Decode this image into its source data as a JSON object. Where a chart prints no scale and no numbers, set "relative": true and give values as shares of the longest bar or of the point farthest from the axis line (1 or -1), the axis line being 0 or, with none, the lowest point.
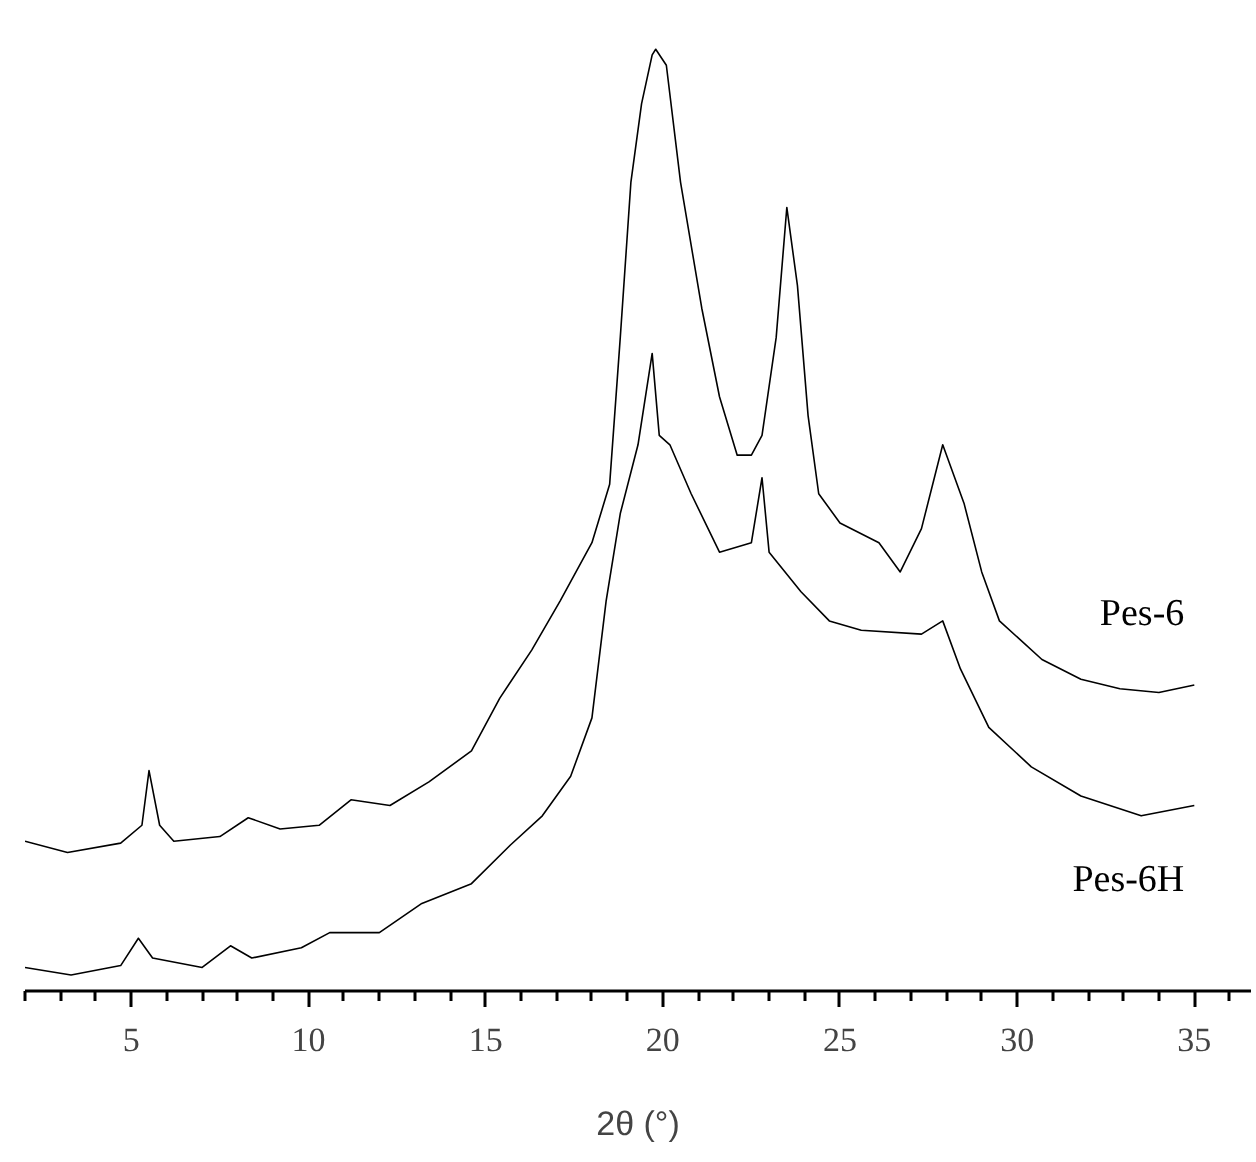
{
  "chart_data": {
    "type": "line",
    "xlabel": "2θ (°)",
    "relative": true,
    "legend": false,
    "grid": false,
    "marker": "none",
    "line_style": "solid",
    "xlim": [
      2,
      36.6
    ],
    "xticks": [
      {
        "value": 2,
        "label": null
      },
      {
        "value": 3,
        "label": null
      },
      {
        "value": 4,
        "label": null
      },
      5,
      {
        "value": 6,
        "label": null
      },
      {
        "value": 7,
        "label": null
      },
      {
        "value": 8,
        "label": null
      },
      {
        "value": 9,
        "label": null
      },
      10,
      {
        "value": 11,
        "label": null
      },
      {
        "value": 12,
        "label": null
      },
      {
        "value": 13,
        "label": null
      },
      {
        "value": 14,
        "label": null
      },
      15,
      {
        "value": 16,
        "label": null
      },
      {
        "value": 17,
        "label": null
      },
      {
        "value": 18,
        "label": null
      },
      {
        "value": 19,
        "label": null
      },
      20,
      {
        "value": 21,
        "label": null
      },
      {
        "value": 22,
        "label": null
      },
      {
        "value": 23,
        "label": null
      },
      {
        "value": 24,
        "label": null
      },
      25,
      {
        "value": 26,
        "label": null
      },
      {
        "value": 27,
        "label": null
      },
      {
        "value": 28,
        "label": null
      },
      {
        "value": 29,
        "label": null
      },
      30,
      {
        "value": 31,
        "label": null
      },
      {
        "value": 32,
        "label": null
      },
      {
        "value": 33,
        "label": null
      },
      {
        "value": 34,
        "label": null
      },
      35,
      {
        "value": 36,
        "label": null
      }
    ],
    "series": [
      {
        "name": "Pes-6",
        "color": "#000000",
        "x": [
          2.0,
          3.2,
          4.7,
          5.3,
          5.5,
          5.8,
          6.2,
          7.5,
          8.3,
          9.2,
          10.3,
          11.2,
          12.3,
          13.4,
          14.6,
          15.4,
          16.3,
          17.1,
          18.0,
          18.5,
          18.8,
          19.1,
          19.4,
          19.7,
          19.8,
          20.1,
          20.5,
          21.1,
          21.6,
          22.1,
          22.5,
          22.8,
          23.2,
          23.5,
          23.8,
          24.1,
          24.4,
          25.0,
          26.1,
          26.7,
          27.3,
          27.9,
          28.5,
          29.0,
          29.5,
          30.7,
          31.8,
          32.9,
          34.0,
          35.0
        ],
        "values": [
          0.159,
          0.147,
          0.157,
          0.176,
          0.234,
          0.176,
          0.159,
          0.164,
          0.184,
          0.172,
          0.176,
          0.203,
          0.197,
          0.222,
          0.255,
          0.311,
          0.362,
          0.414,
          0.476,
          0.538,
          0.694,
          0.859,
          0.942,
          0.994,
          1.0,
          0.983,
          0.859,
          0.725,
          0.631,
          0.569,
          0.569,
          0.59,
          0.694,
          0.832,
          0.749,
          0.611,
          0.528,
          0.497,
          0.476,
          0.445,
          0.491,
          0.58,
          0.518,
          0.445,
          0.393,
          0.352,
          0.331,
          0.321,
          0.317,
          0.325
        ]
      },
      {
        "name": "Pes-6H",
        "color": "#000000",
        "x": [
          2.0,
          3.3,
          4.7,
          5.2,
          5.6,
          7.0,
          7.8,
          8.4,
          9.8,
          10.6,
          12.0,
          13.2,
          14.6,
          15.7,
          16.6,
          17.4,
          18.0,
          18.4,
          18.8,
          19.3,
          19.7,
          19.9,
          20.2,
          20.8,
          21.6,
          22.5,
          22.8,
          23.0,
          23.9,
          24.7,
          25.6,
          27.3,
          27.9,
          28.4,
          29.2,
          30.4,
          31.8,
          33.5,
          35.0
        ],
        "values": [
          0.025,
          0.017,
          0.027,
          0.056,
          0.035,
          0.025,
          0.048,
          0.035,
          0.046,
          0.062,
          0.062,
          0.093,
          0.114,
          0.155,
          0.186,
          0.228,
          0.29,
          0.414,
          0.507,
          0.58,
          0.677,
          0.59,
          0.58,
          0.528,
          0.466,
          0.476,
          0.545,
          0.466,
          0.424,
          0.393,
          0.383,
          0.379,
          0.393,
          0.342,
          0.28,
          0.238,
          0.207,
          0.186,
          0.197
        ]
      }
    ]
  }
}
